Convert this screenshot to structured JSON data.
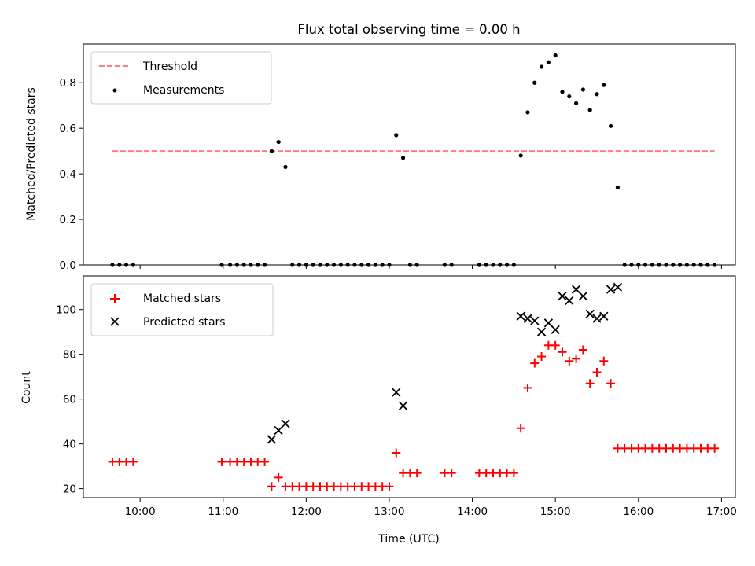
{
  "chart_data": [
    {
      "type": "scatter",
      "title": "Flux total observing time = 0.00 h",
      "xlabel": "",
      "ylabel": "Matched/Predicted stars",
      "xlim": [
        "09:19",
        "17:10"
      ],
      "ylim": [
        0,
        0.97
      ],
      "yticks": [
        0,
        0.2,
        0.4,
        0.6,
        0.8
      ],
      "ytick_labels": [
        "0.0",
        "0.2",
        "0.4",
        "0.6",
        "0.8"
      ],
      "grid": false,
      "legend_position": "top-left",
      "series": [
        {
          "name": "Threshold",
          "kind": "line",
          "style": "dashed",
          "color": "#ff7f7f",
          "x": [
            "09:40",
            "16:55"
          ],
          "y": [
            0.5,
            0.5
          ]
        },
        {
          "name": "Measurements",
          "kind": "scatter",
          "marker": "dot",
          "color": "#000000",
          "x": [
            "09:40",
            "09:45",
            "09:50",
            "09:55",
            "10:59",
            "11:05",
            "11:10",
            "11:15",
            "11:20",
            "11:25",
            "11:30",
            "11:35",
            "11:40",
            "11:45",
            "11:50",
            "11:55",
            "12:00",
            "12:05",
            "12:10",
            "12:15",
            "12:20",
            "12:25",
            "12:30",
            "12:35",
            "12:40",
            "12:45",
            "12:50",
            "12:55",
            "13:00",
            "13:05",
            "13:10",
            "13:15",
            "13:20",
            "13:40",
            "13:45",
            "14:05",
            "14:10",
            "14:15",
            "14:20",
            "14:25",
            "14:30",
            "14:35",
            "14:40",
            "14:45",
            "14:50",
            "14:55",
            "15:00",
            "15:05",
            "15:10",
            "15:15",
            "15:20",
            "15:25",
            "15:30",
            "15:35",
            "15:40",
            "15:45",
            "15:50",
            "15:55",
            "16:00",
            "16:05",
            "16:10",
            "16:15",
            "16:20",
            "16:25",
            "16:30",
            "16:35",
            "16:40",
            "16:45",
            "16:50",
            "16:55"
          ],
          "y": [
            0,
            0,
            0,
            0,
            0,
            0,
            0,
            0,
            0,
            0,
            0,
            0.5,
            0.54,
            0.43,
            0,
            0,
            0,
            0,
            0,
            0,
            0,
            0,
            0,
            0,
            0,
            0,
            0,
            0,
            0,
            0.57,
            0.47,
            0,
            0,
            0,
            0,
            0,
            0,
            0,
            0,
            0,
            0,
            0.48,
            0.67,
            0.8,
            0.87,
            0.89,
            0.92,
            0.76,
            0.74,
            0.71,
            0.77,
            0.68,
            0.75,
            0.79,
            0.61,
            0.34,
            0,
            0,
            0,
            0,
            0,
            0,
            0,
            0,
            0,
            0,
            0,
            0,
            0,
            0
          ]
        }
      ]
    },
    {
      "type": "scatter",
      "title": "",
      "xlabel": "Time (UTC)",
      "ylabel": "Count",
      "xlim": [
        "09:19",
        "17:10"
      ],
      "ylim": [
        16,
        115
      ],
      "xticks": [
        "10:00",
        "11:00",
        "12:00",
        "13:00",
        "14:00",
        "15:00",
        "16:00",
        "17:00"
      ],
      "yticks": [
        20,
        40,
        60,
        80,
        100
      ],
      "ytick_labels": [
        "20",
        "40",
        "60",
        "80",
        "100"
      ],
      "grid": false,
      "legend_position": "top-left",
      "series": [
        {
          "name": "Matched stars",
          "kind": "scatter",
          "marker": "plus",
          "color": "#ff0000",
          "x": [
            "09:40",
            "09:45",
            "09:50",
            "09:55",
            "10:59",
            "11:05",
            "11:10",
            "11:15",
            "11:20",
            "11:25",
            "11:30",
            "11:35",
            "11:40",
            "11:45",
            "11:50",
            "11:55",
            "12:00",
            "12:05",
            "12:10",
            "12:15",
            "12:20",
            "12:25",
            "12:30",
            "12:35",
            "12:40",
            "12:45",
            "12:50",
            "12:55",
            "13:00",
            "13:05",
            "13:10",
            "13:15",
            "13:20",
            "13:40",
            "13:45",
            "14:05",
            "14:10",
            "14:15",
            "14:20",
            "14:25",
            "14:30",
            "14:35",
            "14:40",
            "14:45",
            "14:50",
            "14:55",
            "15:00",
            "15:05",
            "15:10",
            "15:15",
            "15:20",
            "15:25",
            "15:30",
            "15:35",
            "15:40",
            "15:45",
            "15:50",
            "15:55",
            "16:00",
            "16:05",
            "16:10",
            "16:15",
            "16:20",
            "16:25",
            "16:30",
            "16:35",
            "16:40",
            "16:45",
            "16:50",
            "16:55"
          ],
          "y": [
            32,
            32,
            32,
            32,
            32,
            32,
            32,
            32,
            32,
            32,
            32,
            21,
            25,
            21,
            21,
            21,
            21,
            21,
            21,
            21,
            21,
            21,
            21,
            21,
            21,
            21,
            21,
            21,
            21,
            36,
            27,
            27,
            27,
            27,
            27,
            27,
            27,
            27,
            27,
            27,
            27,
            47,
            65,
            76,
            79,
            84,
            84,
            81,
            77,
            78,
            82,
            67,
            72,
            77,
            67,
            38,
            38,
            38,
            38,
            38,
            38,
            38,
            38,
            38,
            38,
            38,
            38,
            38,
            38,
            38
          ]
        },
        {
          "name": "Predicted stars",
          "kind": "scatter",
          "marker": "x",
          "color": "#000000",
          "x": [
            "11:35",
            "11:40",
            "11:45",
            "13:05",
            "13:10",
            "14:35",
            "14:40",
            "14:45",
            "14:50",
            "14:55",
            "15:00",
            "15:05",
            "15:10",
            "15:15",
            "15:20",
            "15:25",
            "15:30",
            "15:35",
            "15:40",
            "15:45"
          ],
          "y": [
            42,
            46,
            49,
            63,
            57,
            97,
            96,
            95,
            90,
            94,
            91,
            106,
            104,
            109,
            106,
            98,
            96,
            97,
            109,
            110
          ]
        }
      ]
    }
  ]
}
